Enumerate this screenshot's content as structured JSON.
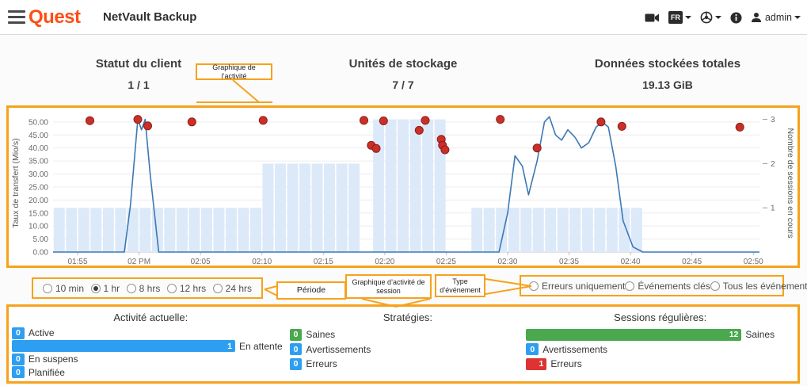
{
  "header": {
    "brand": "Quest",
    "title": "NetVault Backup",
    "lang_badge": "FR",
    "user": "admin"
  },
  "stats": [
    {
      "label": "Statut du client",
      "value": "1 / 1"
    },
    {
      "label": "Unités de stockage",
      "value": "7 / 7"
    },
    {
      "label": "Données stockées totales",
      "value": "19.13 GiB"
    }
  ],
  "callouts": {
    "activity_chart": "Graphique de l’activité",
    "period": "Période",
    "session_chart": "Graphique d’activité de session",
    "event_type": "Type d’événement"
  },
  "chart_data": {
    "type": "line+bar+scatter",
    "title": "Graphique de l’activité",
    "x_max": 57.5,
    "x_ticks": [
      {
        "m": 2,
        "label": "01:55"
      },
      {
        "m": 7,
        "label": "02 PM"
      },
      {
        "m": 12,
        "label": "02:05"
      },
      {
        "m": 17,
        "label": "02:10"
      },
      {
        "m": 22,
        "label": "02:15"
      },
      {
        "m": 27,
        "label": "02:20"
      },
      {
        "m": 32,
        "label": "02:25"
      },
      {
        "m": 37,
        "label": "02:30"
      },
      {
        "m": 42,
        "label": "02:35"
      },
      {
        "m": 47,
        "label": "02:40"
      },
      {
        "m": 52,
        "label": "02:45"
      },
      {
        "m": 57,
        "label": "02:50"
      }
    ],
    "y_left": {
      "label": "Taux de transfert (Mio/s)",
      "min": 0,
      "max": 53,
      "tick_step": 5,
      "tick_max": 50
    },
    "y_right": {
      "label": "Nombre de sessions en cours",
      "ticks": [
        1,
        2,
        3
      ],
      "unit_in_left_scale": 17
    },
    "bars_sessions": [
      [
        0,
        17,
        1
      ],
      [
        17,
        25,
        2
      ],
      [
        26,
        32,
        3
      ],
      [
        34,
        48,
        1
      ]
    ],
    "line_transfer": [
      [
        0,
        0
      ],
      [
        5.8,
        0
      ],
      [
        6.3,
        18
      ],
      [
        6.9,
        51
      ],
      [
        7.2,
        47
      ],
      [
        7.5,
        51
      ],
      [
        7.9,
        30
      ],
      [
        8.6,
        0
      ],
      [
        36.3,
        0
      ],
      [
        37,
        15
      ],
      [
        37.6,
        37
      ],
      [
        38.2,
        33
      ],
      [
        38.7,
        22
      ],
      [
        39.4,
        35
      ],
      [
        40,
        50
      ],
      [
        40.4,
        52
      ],
      [
        40.9,
        45
      ],
      [
        41.4,
        43
      ],
      [
        41.9,
        47
      ],
      [
        42.5,
        44
      ],
      [
        43,
        40
      ],
      [
        43.6,
        42
      ],
      [
        44.2,
        48
      ],
      [
        44.7,
        50
      ],
      [
        45.2,
        48
      ],
      [
        45.8,
        33
      ],
      [
        46.4,
        12
      ],
      [
        47.2,
        2
      ],
      [
        48,
        0
      ],
      [
        57.5,
        0
      ]
    ],
    "events": [
      [
        3,
        50.5
      ],
      [
        6.9,
        51
      ],
      [
        7.7,
        48.5
      ],
      [
        11.3,
        50
      ],
      [
        17.1,
        50.6
      ],
      [
        25.3,
        50.6
      ],
      [
        25.9,
        41
      ],
      [
        26.3,
        39.8
      ],
      [
        26.9,
        50.4
      ],
      [
        29.8,
        46.8
      ],
      [
        30.3,
        50.6
      ],
      [
        31.6,
        43.3
      ],
      [
        31.7,
        41
      ],
      [
        31.9,
        39.3
      ],
      [
        36.4,
        51
      ],
      [
        39.4,
        40
      ],
      [
        44.6,
        50
      ],
      [
        46.3,
        48.3
      ],
      [
        55.9,
        48
      ]
    ]
  },
  "period_control": {
    "options": [
      {
        "label": "10 min",
        "selected": false
      },
      {
        "label": "1 hr",
        "selected": true
      },
      {
        "label": "8 hrs",
        "selected": false
      },
      {
        "label": "12 hrs",
        "selected": false
      },
      {
        "label": "24 hrs",
        "selected": false
      }
    ]
  },
  "event_control": {
    "options": [
      {
        "label": "Erreurs uniquement",
        "selected": false
      },
      {
        "label": "Événements clés",
        "selected": false
      },
      {
        "label": "Tous les événements",
        "selected": false
      }
    ]
  },
  "summary": {
    "activity": {
      "title": "Activité actuelle:",
      "rows": [
        {
          "count": 0,
          "label": "Active",
          "color": "blue"
        },
        {
          "count": 1,
          "label": "En attente",
          "color": "blue"
        },
        {
          "count": 0,
          "label": "En suspens",
          "color": "blue"
        },
        {
          "count": 0,
          "label": "Planifiée",
          "color": "blue"
        }
      ]
    },
    "policies": {
      "title": "Stratégies:",
      "rows": [
        {
          "count": 0,
          "label": "Saines",
          "color": "green"
        },
        {
          "count": 0,
          "label": "Avertissements",
          "color": "blue"
        },
        {
          "count": 0,
          "label": "Erreurs",
          "color": "blue"
        }
      ]
    },
    "regular_sessions": {
      "title": "Sessions régulières:",
      "rows": [
        {
          "count": 12,
          "label": "Saines",
          "color": "green"
        },
        {
          "count": 0,
          "label": "Avertissements",
          "color": "blue"
        },
        {
          "count": 1,
          "label": "Erreurs",
          "color": "red"
        }
      ]
    }
  },
  "colors": {
    "annotation_orange": "#f6a21d",
    "brand_orange": "#fb4f14",
    "bar_fill": "#dce9f9",
    "line_blue": "#3c78b4",
    "event_red": "#ca3028",
    "badge_blue": "#2e9ff0",
    "badge_green": "#4aa84e",
    "badge_red": "#dd3333"
  }
}
